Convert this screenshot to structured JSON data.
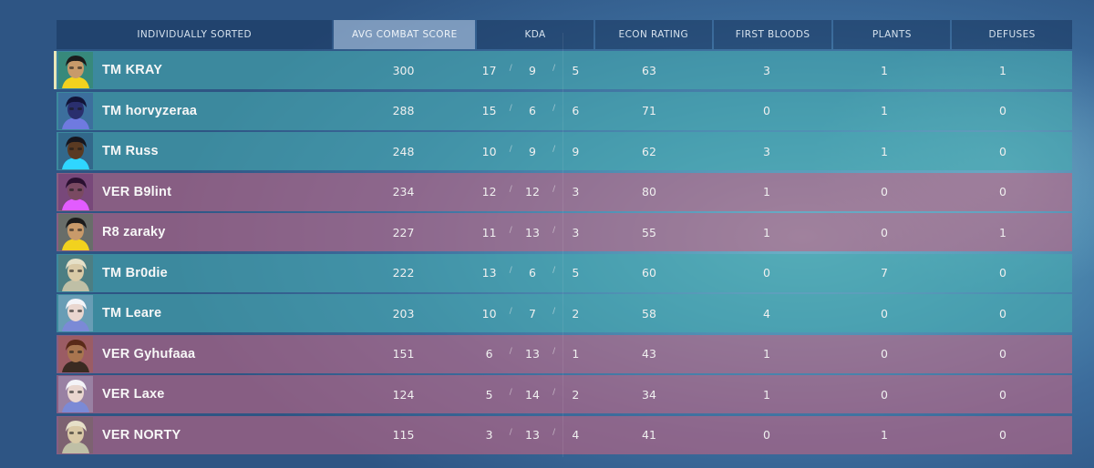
{
  "header": {
    "sort_label": "INDIVIDUALLY SORTED",
    "acs": "AVG COMBAT SCORE",
    "kda": "KDA",
    "econ": "ECON RATING",
    "first_bloods": "FIRST BLOODS",
    "plants": "PLANTS",
    "defuses": "DEFUSES"
  },
  "colors": {
    "team_a": "#46aaaf",
    "team_b": "#be6482",
    "header_active": "#96afcd"
  },
  "players": [
    {
      "name": "TM KRAY",
      "team": "a",
      "agent": "killjoy-icon",
      "acs": "300",
      "k": "17",
      "d": "9",
      "a": "5",
      "econ": "63",
      "fb": "3",
      "plants": "1",
      "defuses": "1",
      "self": true
    },
    {
      "name": "TM horvyzeraa",
      "team": "a",
      "agent": "omen-icon",
      "acs": "288",
      "k": "15",
      "d": "6",
      "a": "6",
      "econ": "71",
      "fb": "0",
      "plants": "1",
      "defuses": "0"
    },
    {
      "name": "TM Russ",
      "team": "a",
      "agent": "neon-icon",
      "acs": "248",
      "k": "10",
      "d": "9",
      "a": "9",
      "econ": "62",
      "fb": "3",
      "plants": "1",
      "defuses": "0"
    },
    {
      "name": "VER B9lint",
      "team": "b",
      "agent": "reyna-icon",
      "acs": "234",
      "k": "12",
      "d": "12",
      "a": "3",
      "econ": "80",
      "fb": "1",
      "plants": "0",
      "defuses": "0"
    },
    {
      "name": "R8 zaraky",
      "team": "b",
      "agent": "killjoy-icon",
      "acs": "227",
      "k": "11",
      "d": "13",
      "a": "3",
      "econ": "55",
      "fb": "1",
      "plants": "0",
      "defuses": "1"
    },
    {
      "name": "TM Br0die",
      "team": "a",
      "agent": "sova-icon",
      "acs": "222",
      "k": "13",
      "d": "6",
      "a": "5",
      "econ": "60",
      "fb": "0",
      "plants": "7",
      "defuses": "0"
    },
    {
      "name": "TM Leare",
      "team": "a",
      "agent": "jett-icon",
      "acs": "203",
      "k": "10",
      "d": "7",
      "a": "2",
      "econ": "58",
      "fb": "4",
      "plants": "0",
      "defuses": "0"
    },
    {
      "name": "VER Gyhufaaa",
      "team": "b",
      "agent": "kayo-icon",
      "acs": "151",
      "k": "6",
      "d": "13",
      "a": "1",
      "econ": "43",
      "fb": "1",
      "plants": "0",
      "defuses": "0"
    },
    {
      "name": "VER Laxe",
      "team": "b",
      "agent": "jett-icon",
      "acs": "124",
      "k": "5",
      "d": "14",
      "a": "2",
      "econ": "34",
      "fb": "1",
      "plants": "0",
      "defuses": "0"
    },
    {
      "name": "VER NORTY",
      "team": "b",
      "agent": "sova-icon",
      "acs": "115",
      "k": "3",
      "d": "13",
      "a": "4",
      "econ": "41",
      "fb": "0",
      "plants": "1",
      "defuses": "0"
    }
  ]
}
